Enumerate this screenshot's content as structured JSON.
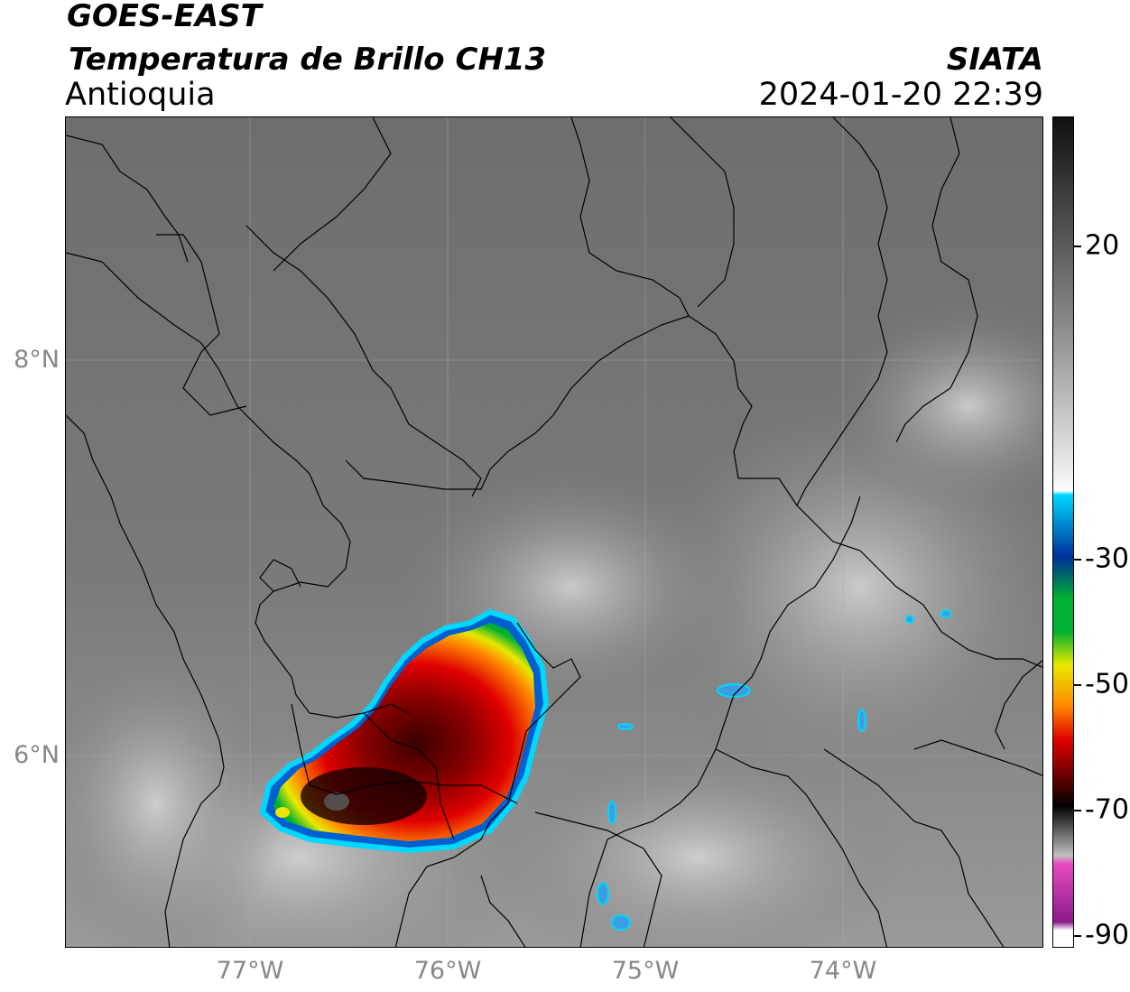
{
  "header": {
    "satellite": "GOES-EAST",
    "product": "Temperatura de Brillo CH13",
    "region": "Antioquia",
    "agency": "SIATA",
    "datetime": "2024-01-20 22:39"
  },
  "map": {
    "lat_labels": [
      "8°N",
      "6°N"
    ],
    "lon_labels": [
      "77°W",
      "76°W",
      "75°W",
      "74°W"
    ]
  },
  "colorbar": {
    "labels": [
      "20",
      "-30",
      "-50",
      "-70",
      "-90"
    ],
    "colors": {
      "warm_top": "#101010",
      "warm_mid": "#8a8a8a",
      "warm_bottom": "#f4f4f4",
      "cyan": "#00d8ff",
      "blue": "#002f9a",
      "green": "#00b030",
      "yellow": "#e8e800",
      "orange": "#ff8800",
      "red": "#e00000",
      "dark_red": "#5a0000",
      "black": "#000000",
      "pink": "#e84ac0",
      "purple": "#8a1a8a"
    }
  }
}
